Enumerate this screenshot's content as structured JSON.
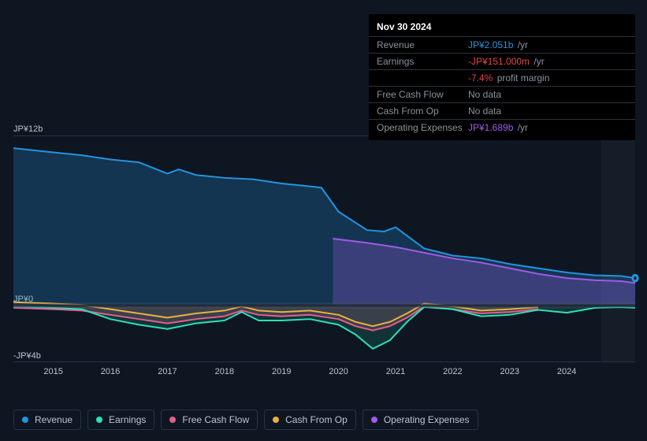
{
  "tooltip": {
    "date": "Nov 30 2024",
    "rows": [
      {
        "label": "Revenue",
        "value": "JP¥2.051b",
        "unit": "/yr",
        "color": "#2394df"
      },
      {
        "label": "Earnings",
        "value": "-JP¥151.000m",
        "unit": "/yr",
        "color": "#e64545"
      },
      {
        "label": "",
        "value": "-7.4%",
        "unit": "profit margin",
        "color": "#e64545"
      },
      {
        "label": "Free Cash Flow",
        "value": "No data",
        "unit": "",
        "color": "#8a919c"
      },
      {
        "label": "Cash From Op",
        "value": "No data",
        "unit": "",
        "color": "#8a919c"
      },
      {
        "label": "Operating Expenses",
        "value": "JP¥1.689b",
        "unit": "/yr",
        "color": "#a05ae6"
      }
    ]
  },
  "chart": {
    "type": "area-line",
    "background_color": "#0e1622",
    "grid_color": "#2a3340",
    "yaxis": {
      "min": -4,
      "max": 12,
      "zero": 0,
      "labels": [
        {
          "text": "JP¥12b",
          "value": 12
        },
        {
          "text": "JP¥0",
          "value": 0
        },
        {
          "text": "-JP¥4b",
          "value": -4
        }
      ],
      "label_fontsize": 11,
      "label_color": "#c0c4cb"
    },
    "xaxis": {
      "min": 2014.3,
      "max": 2025.2,
      "labels": [
        "2015",
        "2016",
        "2017",
        "2018",
        "2019",
        "2020",
        "2021",
        "2022",
        "2023",
        "2024"
      ],
      "label_fontsize": 11,
      "label_color": "#c0c4cb"
    },
    "future_start": 2024.6,
    "series": [
      {
        "name": "Revenue",
        "color": "#2394df",
        "fill_opacity": 0.25,
        "line_width": 2,
        "data": [
          [
            2014.3,
            11.1
          ],
          [
            2015,
            10.8
          ],
          [
            2015.5,
            10.6
          ],
          [
            2016,
            10.3
          ],
          [
            2016.5,
            10.1
          ],
          [
            2017,
            9.3
          ],
          [
            2017.2,
            9.6
          ],
          [
            2017.5,
            9.2
          ],
          [
            2018,
            9.0
          ],
          [
            2018.5,
            8.9
          ],
          [
            2019,
            8.6
          ],
          [
            2019.5,
            8.4
          ],
          [
            2019.7,
            8.3
          ],
          [
            2020,
            6.6
          ],
          [
            2020.5,
            5.3
          ],
          [
            2020.8,
            5.2
          ],
          [
            2021.0,
            5.5
          ],
          [
            2021.2,
            4.9
          ],
          [
            2021.5,
            4.0
          ],
          [
            2022,
            3.5
          ],
          [
            2022.5,
            3.3
          ],
          [
            2023,
            2.9
          ],
          [
            2023.5,
            2.6
          ],
          [
            2024,
            2.3
          ],
          [
            2024.5,
            2.1
          ],
          [
            2024.95,
            2.05
          ],
          [
            2025.2,
            1.9
          ]
        ]
      },
      {
        "name": "Operating Expenses",
        "color": "#a05ae6",
        "fill_opacity": 0.28,
        "line_width": 2,
        "start_x": 2019.9,
        "data": [
          [
            2019.9,
            4.7
          ],
          [
            2020.5,
            4.4
          ],
          [
            2021,
            4.1
          ],
          [
            2021.5,
            3.7
          ],
          [
            2022,
            3.3
          ],
          [
            2022.5,
            3.0
          ],
          [
            2023,
            2.6
          ],
          [
            2023.5,
            2.2
          ],
          [
            2024,
            1.9
          ],
          [
            2024.5,
            1.75
          ],
          [
            2024.95,
            1.689
          ],
          [
            2025.2,
            1.55
          ]
        ]
      },
      {
        "name": "Earnings",
        "color": "#2de0b8",
        "fill_opacity": 0.15,
        "line_width": 2,
        "data": [
          [
            2014.3,
            -0.1
          ],
          [
            2015,
            -0.2
          ],
          [
            2015.5,
            -0.3
          ],
          [
            2016,
            -1.0
          ],
          [
            2016.5,
            -1.4
          ],
          [
            2017,
            -1.7
          ],
          [
            2017.5,
            -1.3
          ],
          [
            2018,
            -1.1
          ],
          [
            2018.3,
            -0.5
          ],
          [
            2018.6,
            -1.1
          ],
          [
            2019,
            -1.1
          ],
          [
            2019.5,
            -1.0
          ],
          [
            2020,
            -1.4
          ],
          [
            2020.3,
            -2.1
          ],
          [
            2020.6,
            -3.1
          ],
          [
            2020.9,
            -2.5
          ],
          [
            2021.2,
            -1.2
          ],
          [
            2021.5,
            -0.15
          ],
          [
            2022,
            -0.3
          ],
          [
            2022.5,
            -0.8
          ],
          [
            2023,
            -0.7
          ],
          [
            2023.5,
            -0.35
          ],
          [
            2024,
            -0.55
          ],
          [
            2024.5,
            -0.2
          ],
          [
            2024.95,
            -0.151
          ],
          [
            2025.2,
            -0.2
          ]
        ]
      },
      {
        "name": "Free Cash Flow",
        "color": "#e85d8f",
        "fill_opacity": 0.22,
        "line_width": 2,
        "data": [
          [
            2014.3,
            -0.2
          ],
          [
            2015,
            -0.3
          ],
          [
            2015.5,
            -0.4
          ],
          [
            2016,
            -0.7
          ],
          [
            2016.5,
            -1.0
          ],
          [
            2017,
            -1.3
          ],
          [
            2017.5,
            -1.0
          ],
          [
            2018,
            -0.8
          ],
          [
            2018.3,
            -0.4
          ],
          [
            2018.6,
            -0.7
          ],
          [
            2019,
            -0.8
          ],
          [
            2019.5,
            -0.7
          ],
          [
            2020,
            -1.0
          ],
          [
            2020.3,
            -1.5
          ],
          [
            2020.6,
            -1.8
          ],
          [
            2020.9,
            -1.5
          ],
          [
            2021.2,
            -0.9
          ],
          [
            2021.5,
            -0.1
          ],
          [
            2022,
            -0.3
          ],
          [
            2022.5,
            -0.6
          ],
          [
            2023,
            -0.5
          ],
          [
            2023.5,
            -0.3
          ]
        ]
      },
      {
        "name": "Cash From Op",
        "color": "#e8b23e",
        "fill_opacity": 0.0,
        "line_width": 2,
        "data": [
          [
            2014.3,
            0.2
          ],
          [
            2015,
            0.1
          ],
          [
            2015.5,
            0.0
          ],
          [
            2016,
            -0.3
          ],
          [
            2016.5,
            -0.6
          ],
          [
            2017,
            -0.9
          ],
          [
            2017.5,
            -0.6
          ],
          [
            2018,
            -0.4
          ],
          [
            2018.3,
            -0.1
          ],
          [
            2018.6,
            -0.4
          ],
          [
            2019,
            -0.5
          ],
          [
            2019.5,
            -0.4
          ],
          [
            2020,
            -0.7
          ],
          [
            2020.3,
            -1.2
          ],
          [
            2020.6,
            -1.5
          ],
          [
            2020.9,
            -1.2
          ],
          [
            2021.2,
            -0.6
          ],
          [
            2021.5,
            0.1
          ],
          [
            2022,
            -0.1
          ],
          [
            2022.5,
            -0.4
          ],
          [
            2023,
            -0.3
          ],
          [
            2023.5,
            -0.15
          ]
        ]
      }
    ],
    "end_dot": {
      "x": 2025.2,
      "color": "#2394df"
    }
  },
  "legend": [
    {
      "label": "Revenue",
      "color": "#2394df"
    },
    {
      "label": "Earnings",
      "color": "#2de0b8"
    },
    {
      "label": "Free Cash Flow",
      "color": "#e85d8f"
    },
    {
      "label": "Cash From Op",
      "color": "#e8b23e"
    },
    {
      "label": "Operating Expenses",
      "color": "#a05ae6"
    }
  ]
}
